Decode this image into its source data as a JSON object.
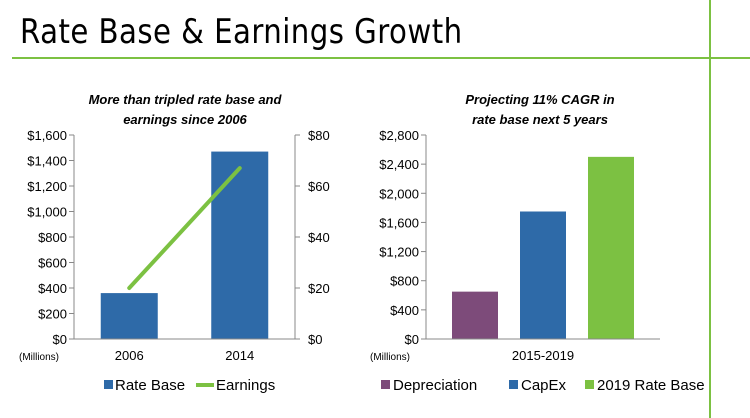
{
  "page_title": "Rate Base & Earnings Growth",
  "colors": {
    "accent": "#7cc142",
    "rate_base": "#2e6aa8",
    "earnings": "#7cc142",
    "depreciation": "#7d4b7a",
    "capex": "#2e6aa8",
    "rate_base_2019": "#7cc142"
  },
  "chart_data": [
    {
      "type": "bar",
      "title": "More than tripled rate base and earnings since 2006",
      "title_lines": [
        "More than tripled rate base and",
        "earnings since 2006"
      ],
      "categories": [
        "2006",
        "2014"
      ],
      "series": [
        {
          "name": "Rate Base",
          "type": "bar",
          "axis": "left",
          "values": [
            360,
            1470
          ]
        },
        {
          "name": "Earnings",
          "type": "line",
          "axis": "right",
          "values": [
            20,
            67
          ]
        }
      ],
      "ylim": [
        0,
        1600
      ],
      "yticks": [
        "$0",
        "$200",
        "$400",
        "$600",
        "$800",
        "$1,000",
        "$1,200",
        "$1,400",
        "$1,600"
      ],
      "y2lim": [
        0,
        80
      ],
      "y2ticks": [
        "$0",
        "$20",
        "$40",
        "$60",
        "$80"
      ],
      "units_label": "(Millions)",
      "legend": [
        "Rate Base",
        "Earnings"
      ]
    },
    {
      "type": "bar",
      "title": "Projecting 11% CAGR in rate base next 5 years",
      "title_lines": [
        "Projecting 11% CAGR in",
        "rate base next 5 years"
      ],
      "categories": [
        "2015-2019"
      ],
      "series": [
        {
          "name": "Depreciation",
          "values": [
            650
          ]
        },
        {
          "name": "CapEx",
          "values": [
            1750
          ]
        },
        {
          "name": "2019 Rate Base",
          "values": [
            2500
          ]
        }
      ],
      "ylim": [
        0,
        2800
      ],
      "yticks": [
        "$0",
        "$400",
        "$800",
        "$1,200",
        "$1,600",
        "$2,000",
        "$2,400",
        "$2,800"
      ],
      "units_label": "(Millions)",
      "legend": [
        "Depreciation",
        "CapEx",
        "2019 Rate Base"
      ]
    }
  ]
}
